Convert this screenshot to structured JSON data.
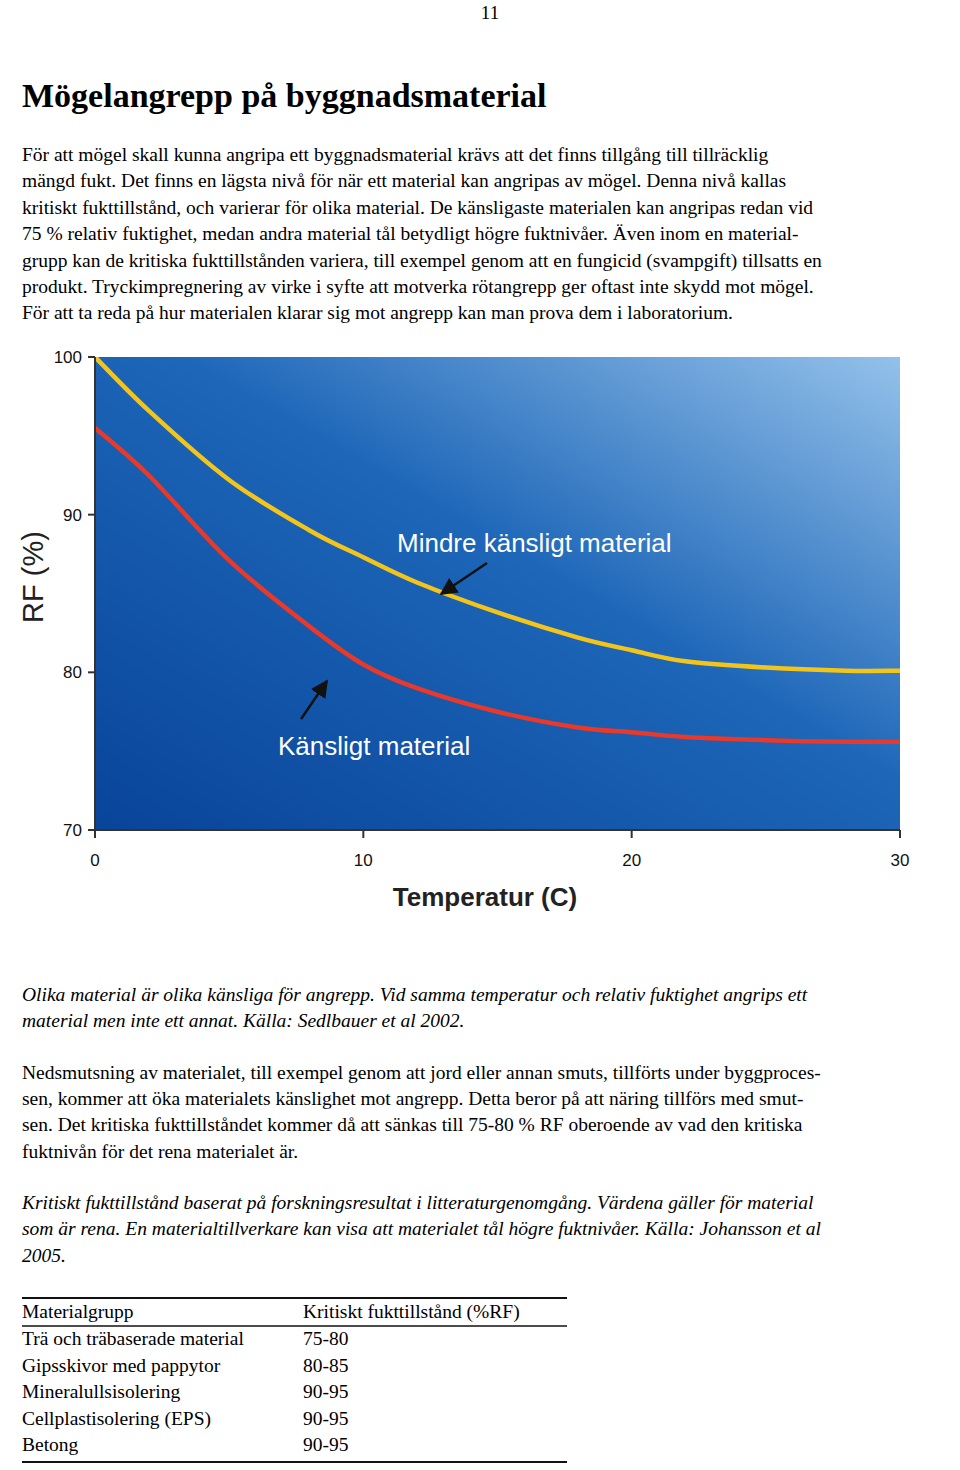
{
  "page_number": "11",
  "heading": "Mögelangrepp på byggnadsmaterial",
  "intro": [
    "För att mögel skall kunna angripa ett byggnadsmaterial krävs att det finns tillgång till tillräcklig",
    "mängd fukt. Det finns en lägsta nivå för när ett material kan angripas av mögel. Denna nivå kallas",
    "kritiskt fukttillstånd, och varierar för olika material. De känsligaste materialen kan angripas redan vid",
    "75 % relativ fuktighet, medan andra material tål betydligt högre fuktnivåer. Även inom en material-",
    "grupp kan de kritiska fukttillstånden variera, till exempel genom att en fungicid (svampgift) tillsatts en",
    "produkt. Tryckimpregnering av virke i syfte att motverka rötangrepp ger oftast inte skydd mot mögel.",
    "För att ta reda på hur materialen klarar sig mot angrepp kan man prova dem i laboratorium."
  ],
  "chart_data": {
    "type": "line",
    "xlabel": "Temperatur (C)",
    "ylabel": "RF (%)",
    "x": [
      0,
      2,
      5,
      8,
      10,
      12,
      15,
      18,
      20,
      22,
      25,
      28,
      30
    ],
    "series": [
      {
        "color": "#f3c51a",
        "values": [
          100,
          96.6,
          92.2,
          89,
          87.3,
          85.7,
          83.8,
          82.2,
          81.4,
          80.7,
          80.3,
          80.1,
          80.1
        ]
      },
      {
        "color": "#e8392a",
        "values": [
          95.5,
          92.5,
          87.1,
          82.9,
          80.5,
          79,
          77.5,
          76.5,
          76.2,
          75.9,
          75.7,
          75.6,
          75.6
        ]
      }
    ],
    "xlim": [
      0,
      30
    ],
    "ylim": [
      70,
      100
    ],
    "xticks": [
      0,
      10,
      20,
      30
    ],
    "yticks": [
      70,
      80,
      90,
      100
    ],
    "grid": false,
    "annotations": [
      "Mindre känsligt material",
      "Känsligt material"
    ]
  },
  "caption": [
    "Olika material är olika känsliga för angrepp. Vid samma temperatur och relativ fuktighet angrips ett",
    "material men inte ett annat. Källa: Sedlbauer et al 2002."
  ],
  "body": [
    "Nedsmutsning av materialet, till exempel genom att jord eller annan smuts, tillförts under byggproces-",
    "sen, kommer att öka materialets känslighet mot angrepp. Detta beror på att näring tillförs med smut-",
    "sen. Det kritiska fukttillståndet kommer då att sänkas till 75-80 % RF oberoende av vad den kritiska",
    "fuktnivån för det rena materialet är."
  ],
  "table_note": [
    "Kritiskt fukttillstånd baserat på forskningsresultat i litteraturgenomgång. Värdena gäller för material",
    "som är rena. En materialtillverkare kan visa att materialet tål högre fuktnivåer. Källa: Johansson et al",
    "2005."
  ],
  "table": {
    "header": [
      "Materialgrupp",
      "Kritiskt fukttillstånd (%RF)"
    ],
    "rows": [
      [
        "Trä och träbaserade material",
        "75-80"
      ],
      [
        "Gipsskivor med pappytor",
        "80-85"
      ],
      [
        "Mineralullsisolering",
        "90-95"
      ],
      [
        "Cellplastisolering (EPS)",
        "90-95"
      ],
      [
        "Betong",
        "90-95"
      ]
    ]
  }
}
